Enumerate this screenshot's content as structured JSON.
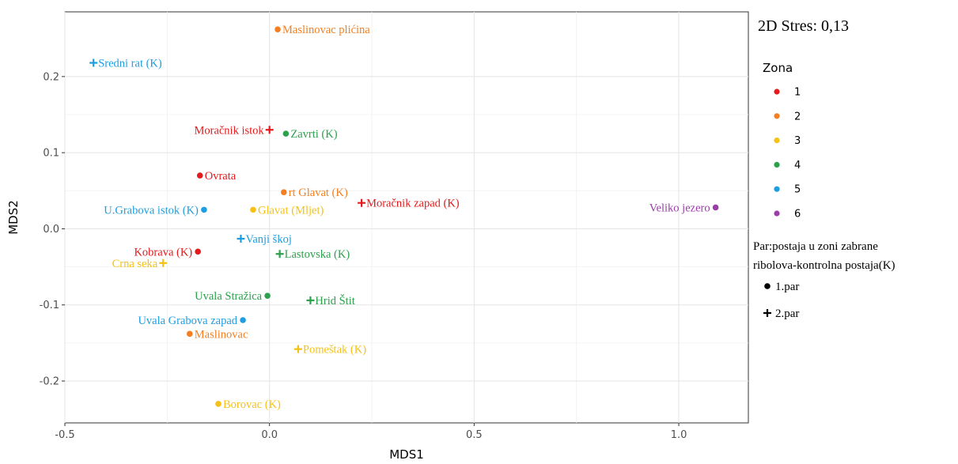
{
  "chart_data": {
    "type": "scatter",
    "title": "",
    "xlabel": "MDS1",
    "ylabel": "MDS2",
    "xlim": [
      -0.5,
      1.17
    ],
    "ylim": [
      -0.255,
      0.285
    ],
    "x_ticks": [
      -0.5,
      0.0,
      0.5,
      1.0
    ],
    "x_tick_labels": [
      "-0.5",
      "0.0",
      "0.5",
      "1.0"
    ],
    "y_ticks": [
      -0.2,
      -0.1,
      0.0,
      0.1,
      0.2
    ],
    "y_tick_labels": [
      "-0.2",
      "-0.1",
      "0.0",
      "0.1",
      "0.2"
    ],
    "grid": true,
    "annotation": "2D Stres: 0,13",
    "zone_legend": {
      "title": "Zona",
      "items": [
        {
          "label": "1",
          "color": "#e41a1c"
        },
        {
          "label": "2",
          "color": "#f57f20"
        },
        {
          "label": "3",
          "color": "#f5c116"
        },
        {
          "label": "4",
          "color": "#2ca04c"
        },
        {
          "label": "5",
          "color": "#1e9ee0"
        },
        {
          "label": "6",
          "color": "#9b3ea8"
        }
      ]
    },
    "pair_legend": {
      "title_line1": "Par:postaja u zoni zabrane",
      "title_line2": "ribolova-kontrolna postaja(K)",
      "items": [
        {
          "label": "1.par",
          "shape": "circle"
        },
        {
          "label": "2.par",
          "shape": "plus"
        }
      ]
    },
    "points": [
      {
        "name": "Maslinovac plićina",
        "x": 0.02,
        "y": 0.262,
        "zone": "2",
        "shape": "circle",
        "label_pos": "right"
      },
      {
        "name": "Sredni rat (K)",
        "x": -0.43,
        "y": 0.218,
        "zone": "5",
        "shape": "plus",
        "label_pos": "right"
      },
      {
        "name": "Moračnik istok",
        "x": 0.0,
        "y": 0.13,
        "zone": "1",
        "shape": "plus",
        "label_pos": "left"
      },
      {
        "name": "Zavrti (K)",
        "x": 0.04,
        "y": 0.125,
        "zone": "4",
        "shape": "circle",
        "label_pos": "right"
      },
      {
        "name": "Ovrata",
        "x": -0.17,
        "y": 0.07,
        "zone": "1",
        "shape": "circle",
        "label_pos": "right"
      },
      {
        "name": "rt Glavat (K)",
        "x": 0.035,
        "y": 0.048,
        "zone": "2",
        "shape": "circle",
        "label_pos": "right"
      },
      {
        "name": "Moračnik zapad (K)",
        "x": 0.225,
        "y": 0.034,
        "zone": "1",
        "shape": "plus",
        "label_pos": "right"
      },
      {
        "name": "U.Grabova istok (K)",
        "x": -0.16,
        "y": 0.025,
        "zone": "5",
        "shape": "circle",
        "label_pos": "left"
      },
      {
        "name": "Glavat (Mljet)",
        "x": -0.04,
        "y": 0.025,
        "zone": "3",
        "shape": "circle",
        "label_pos": "right"
      },
      {
        "name": "Veliko jezero",
        "x": 1.09,
        "y": 0.028,
        "zone": "6",
        "shape": "circle",
        "label_pos": "left"
      },
      {
        "name": "Vanji škoj",
        "x": -0.07,
        "y": -0.013,
        "zone": "5",
        "shape": "plus",
        "label_pos": "right"
      },
      {
        "name": "Kobrava (K)",
        "x": -0.175,
        "y": -0.03,
        "zone": "1",
        "shape": "circle",
        "label_pos": "left"
      },
      {
        "name": "Lastovska (K)",
        "x": 0.025,
        "y": -0.033,
        "zone": "4",
        "shape": "plus",
        "label_pos": "right"
      },
      {
        "name": "Crna seka",
        "x": -0.26,
        "y": -0.045,
        "zone": "3",
        "shape": "plus",
        "label_pos": "left"
      },
      {
        "name": "Uvala Stražica",
        "x": -0.005,
        "y": -0.088,
        "zone": "4",
        "shape": "circle",
        "label_pos": "left"
      },
      {
        "name": "Hrid Štit",
        "x": 0.1,
        "y": -0.094,
        "zone": "4",
        "shape": "plus",
        "label_pos": "right"
      },
      {
        "name": "Uvala Grabova zapad",
        "x": -0.065,
        "y": -0.12,
        "zone": "5",
        "shape": "circle",
        "label_pos": "left"
      },
      {
        "name": "Maslinovac",
        "x": -0.195,
        "y": -0.138,
        "zone": "2",
        "shape": "circle",
        "label_pos": "right"
      },
      {
        "name": "Pomeštak (K)",
        "x": 0.07,
        "y": -0.158,
        "zone": "3",
        "shape": "plus",
        "label_pos": "right"
      },
      {
        "name": "Borovac (K)",
        "x": -0.125,
        "y": -0.23,
        "zone": "3",
        "shape": "circle",
        "label_pos": "right"
      }
    ]
  }
}
